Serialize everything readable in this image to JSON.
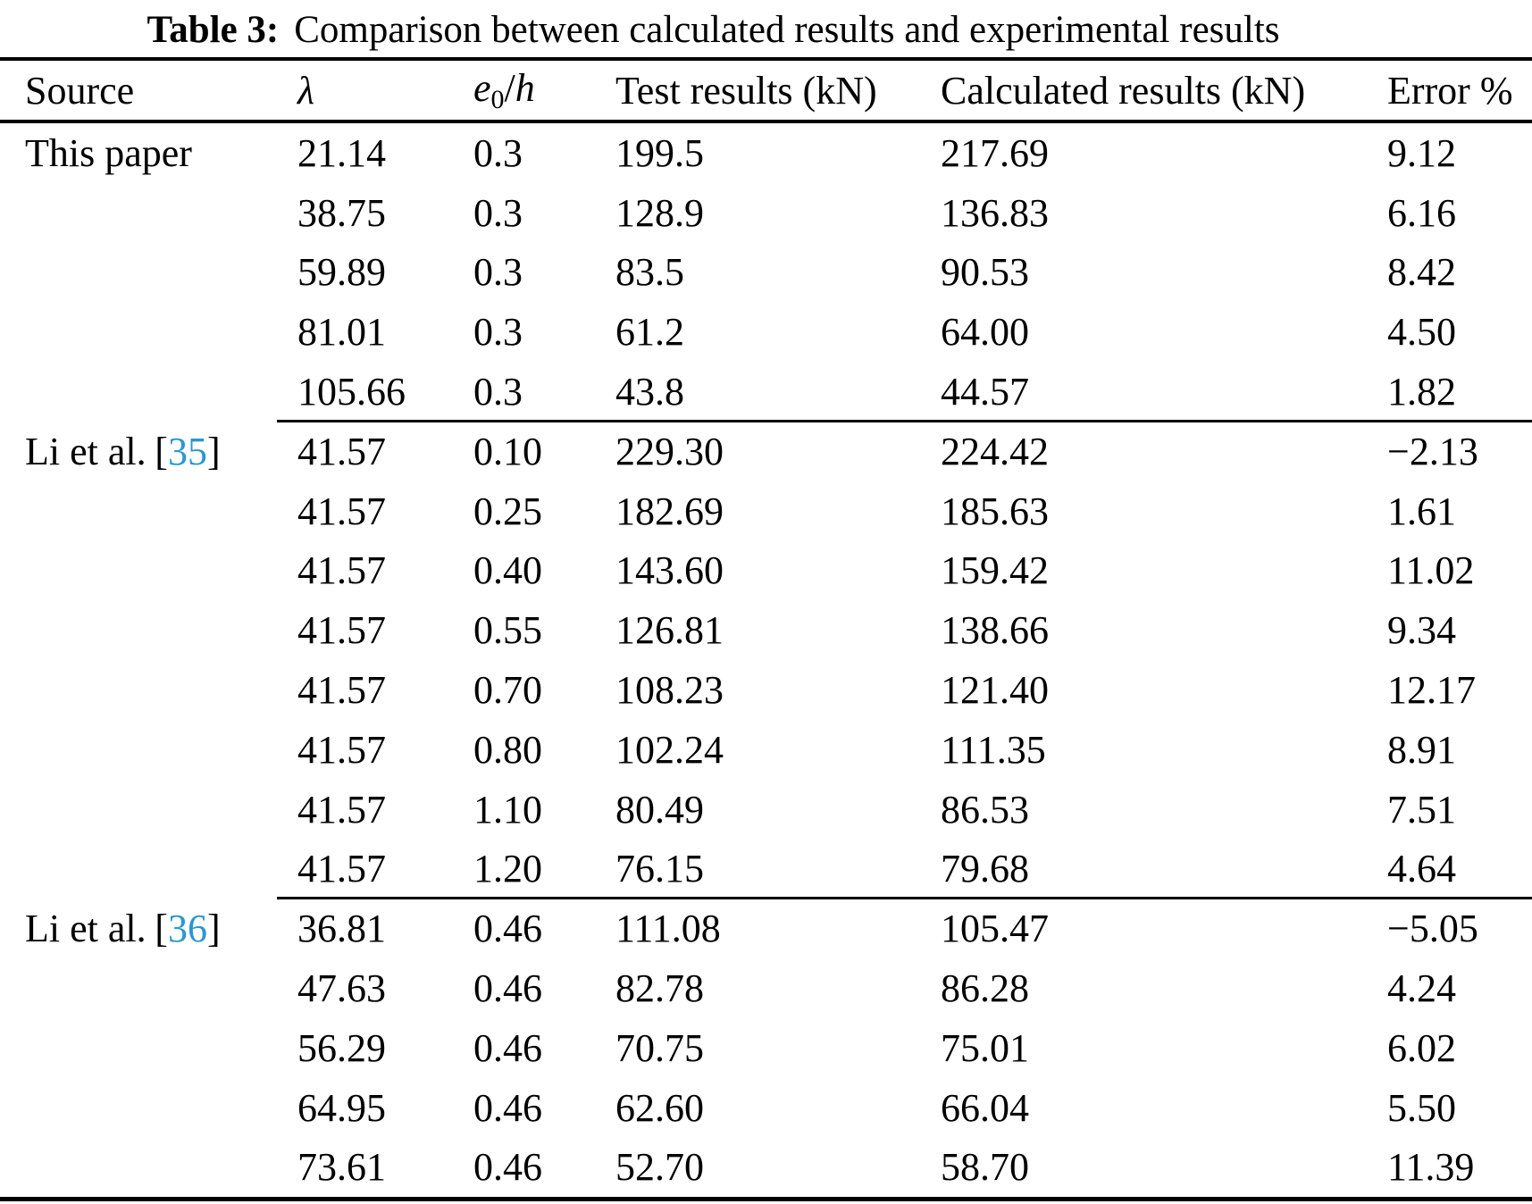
{
  "caption": {
    "label": "Table 3:",
    "text": "Comparison between calculated results and experimental results"
  },
  "colors": {
    "citation": "#2b97cf",
    "text": "#000000",
    "background": "#ffffff"
  },
  "ui": {
    "bracket_open": "[",
    "bracket_close": "]"
  },
  "table": {
    "header": {
      "source": "Source",
      "lambda": "λ",
      "e0h": {
        "base": "e",
        "sub": "0",
        "slash": "/",
        "denom": "h"
      },
      "test": "Test results (kN)",
      "calc": "Calculated results (kN)",
      "error": "Error %"
    },
    "sections": [
      {
        "source": "This paper",
        "ref": null,
        "rows": [
          {
            "lambda": "21.14",
            "e0h": "0.3",
            "test": "199.5",
            "calc": "217.69",
            "error": "9.12"
          },
          {
            "lambda": "38.75",
            "e0h": "0.3",
            "test": "128.9",
            "calc": "136.83",
            "error": "6.16"
          },
          {
            "lambda": "59.89",
            "e0h": "0.3",
            "test": "83.5",
            "calc": "90.53",
            "error": "8.42"
          },
          {
            "lambda": "81.01",
            "e0h": "0.3",
            "test": "61.2",
            "calc": "64.00",
            "error": "4.50"
          },
          {
            "lambda": "105.66",
            "e0h": "0.3",
            "test": "43.8",
            "calc": "44.57",
            "error": "1.82"
          }
        ]
      },
      {
        "source": "Li et al.",
        "ref": "35",
        "rows": [
          {
            "lambda": "41.57",
            "e0h": "0.10",
            "test": "229.30",
            "calc": "224.42",
            "error": "−2.13"
          },
          {
            "lambda": "41.57",
            "e0h": "0.25",
            "test": "182.69",
            "calc": "185.63",
            "error": "1.61"
          },
          {
            "lambda": "41.57",
            "e0h": "0.40",
            "test": "143.60",
            "calc": "159.42",
            "error": "11.02"
          },
          {
            "lambda": "41.57",
            "e0h": "0.55",
            "test": "126.81",
            "calc": "138.66",
            "error": "9.34"
          },
          {
            "lambda": "41.57",
            "e0h": "0.70",
            "test": "108.23",
            "calc": "121.40",
            "error": "12.17"
          },
          {
            "lambda": "41.57",
            "e0h": "0.80",
            "test": "102.24",
            "calc": "111.35",
            "error": "8.91"
          },
          {
            "lambda": "41.57",
            "e0h": "1.10",
            "test": "80.49",
            "calc": "86.53",
            "error": "7.51"
          },
          {
            "lambda": "41.57",
            "e0h": "1.20",
            "test": "76.15",
            "calc": "79.68",
            "error": "4.64"
          }
        ]
      },
      {
        "source": "Li et al.",
        "ref": "36",
        "rows": [
          {
            "lambda": "36.81",
            "e0h": "0.46",
            "test": "111.08",
            "calc": "105.47",
            "error": "−5.05"
          },
          {
            "lambda": "47.63",
            "e0h": "0.46",
            "test": "82.78",
            "calc": "86.28",
            "error": "4.24"
          },
          {
            "lambda": "56.29",
            "e0h": "0.46",
            "test": "70.75",
            "calc": "75.01",
            "error": "6.02"
          },
          {
            "lambda": "64.95",
            "e0h": "0.46",
            "test": "62.60",
            "calc": "66.04",
            "error": "5.50"
          },
          {
            "lambda": "73.61",
            "e0h": "0.46",
            "test": "52.70",
            "calc": "58.70",
            "error": "11.39"
          }
        ]
      }
    ]
  }
}
